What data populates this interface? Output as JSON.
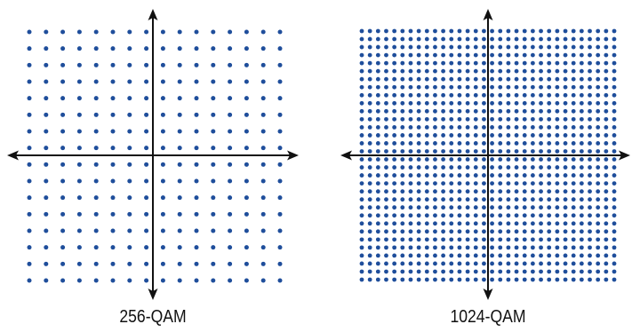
{
  "diagrams": [
    {
      "label": "256-QAM",
      "grid_size": 16
    },
    {
      "label": "1024-QAM",
      "grid_size": 32
    }
  ],
  "colors": {
    "dot": "#1f4e9b",
    "axis": "#111111",
    "background": "#ffffff"
  }
}
